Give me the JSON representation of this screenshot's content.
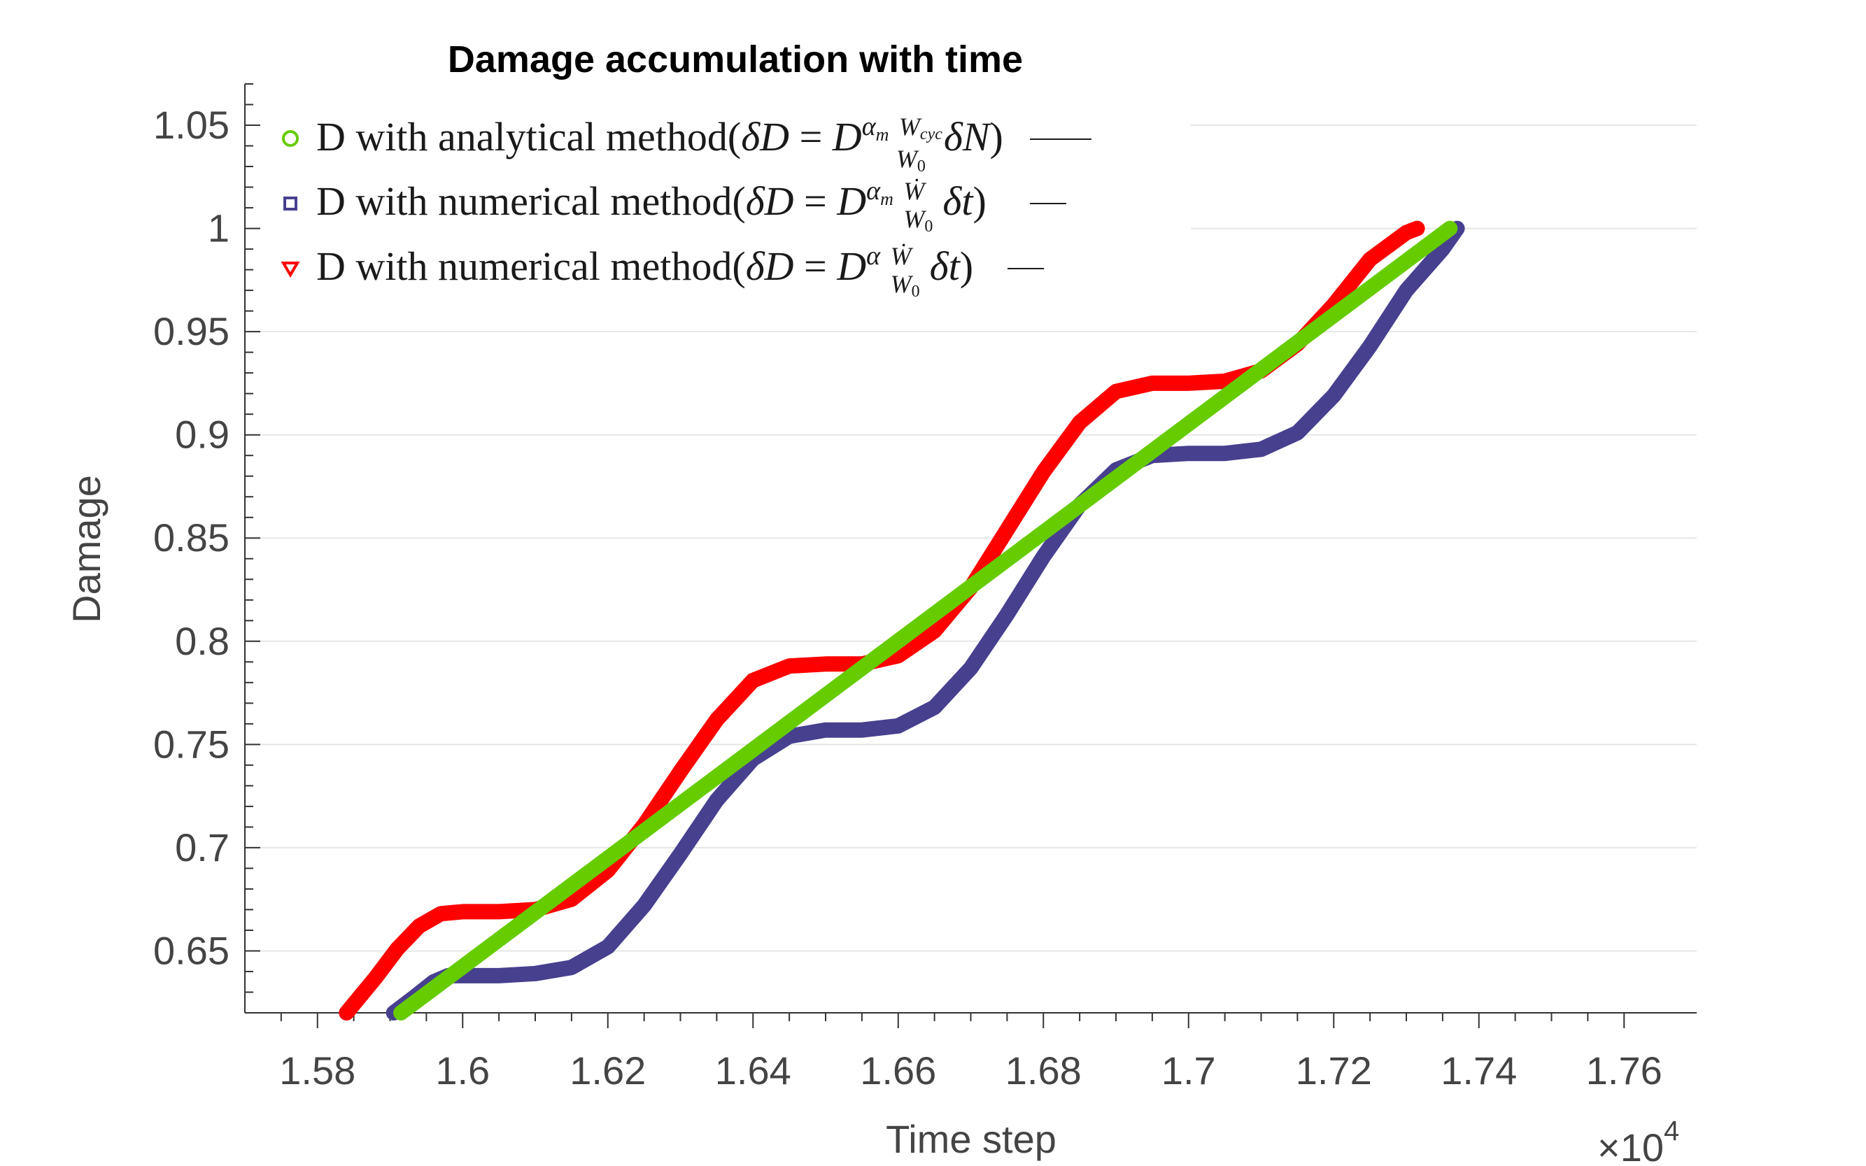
{
  "chart_data": {
    "type": "line",
    "title": "Damage accumulation with time",
    "xlabel": "Time step",
    "ylabel": "Damage",
    "x_exponent_label": "×10",
    "x_exponent_power": "4",
    "xlim": [
      1.57,
      1.77
    ],
    "ylim": [
      0.62,
      1.07
    ],
    "xticks": [
      1.58,
      1.6,
      1.62,
      1.64,
      1.66,
      1.68,
      1.7,
      1.72,
      1.74,
      1.76
    ],
    "xtick_labels": [
      "1.58",
      "1.6",
      "1.62",
      "1.64",
      "1.66",
      "1.68",
      "1.7",
      "1.72",
      "1.74",
      "1.76"
    ],
    "yticks": [
      0.65,
      0.7,
      0.75,
      0.8,
      0.85,
      0.9,
      0.95,
      1,
      1.05
    ],
    "ytick_labels": [
      "0.65",
      "0.7",
      "0.75",
      "0.8",
      "0.85",
      "0.9",
      "0.95",
      "1",
      "1.05"
    ],
    "grid": "horizontal",
    "legend_position": "top-left",
    "series": [
      {
        "name": "D with analytical method(δD = D^{α_m} W_cyc/W_0 δN)",
        "color": "#66cc00",
        "marker": "circle",
        "x": [
          1.5915,
          1.736
        ],
        "y": [
          0.62,
          1.0
        ]
      },
      {
        "name": "D with numerical method(δD = D^{α_m} Ẇ/W_0 δt)",
        "color": "#47408f",
        "marker": "square",
        "x": [
          1.5905,
          1.5935,
          1.596,
          1.598,
          1.6,
          1.605,
          1.61,
          1.615,
          1.62,
          1.625,
          1.63,
          1.635,
          1.64,
          1.645,
          1.65,
          1.655,
          1.66,
          1.665,
          1.67,
          1.675,
          1.68,
          1.685,
          1.69,
          1.695,
          1.7,
          1.705,
          1.71,
          1.715,
          1.72,
          1.725,
          1.73,
          1.735,
          1.737
        ],
        "y": [
          0.62,
          0.628,
          0.635,
          0.638,
          0.638,
          0.638,
          0.639,
          0.642,
          0.652,
          0.672,
          0.697,
          0.723,
          0.743,
          0.754,
          0.757,
          0.757,
          0.759,
          0.768,
          0.787,
          0.813,
          0.841,
          0.866,
          0.883,
          0.89,
          0.891,
          0.891,
          0.893,
          0.901,
          0.919,
          0.943,
          0.97,
          0.99,
          1.0
        ]
      },
      {
        "name": "D with numerical method(δD = D^{α} Ẇ/W_0 δt)",
        "color": "#ff0000",
        "marker": "triangle-down",
        "x": [
          1.584,
          1.588,
          1.591,
          1.594,
          1.597,
          1.6,
          1.605,
          1.61,
          1.615,
          1.62,
          1.625,
          1.63,
          1.635,
          1.64,
          1.645,
          1.65,
          1.655,
          1.66,
          1.665,
          1.67,
          1.675,
          1.68,
          1.685,
          1.69,
          1.695,
          1.7,
          1.705,
          1.71,
          1.715,
          1.72,
          1.725,
          1.73,
          1.7315
        ],
        "y": [
          0.62,
          0.637,
          0.651,
          0.662,
          0.668,
          0.669,
          0.669,
          0.67,
          0.675,
          0.689,
          0.711,
          0.737,
          0.762,
          0.781,
          0.788,
          0.789,
          0.789,
          0.793,
          0.805,
          0.826,
          0.854,
          0.882,
          0.906,
          0.921,
          0.925,
          0.925,
          0.926,
          0.931,
          0.944,
          0.963,
          0.985,
          0.998,
          1.0
        ]
      }
    ]
  }
}
